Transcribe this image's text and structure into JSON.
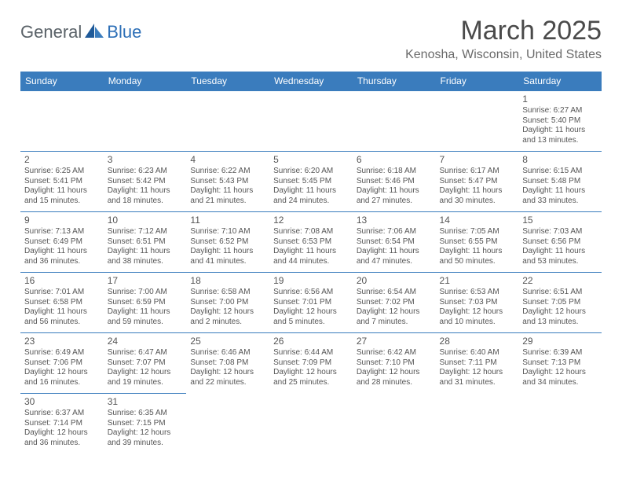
{
  "logo": {
    "text1": "General",
    "text2": "Blue"
  },
  "title": "March 2025",
  "location": "Kenosha, Wisconsin, United States",
  "colors": {
    "header_bg": "#3a7cbd",
    "header_text": "#ffffff",
    "border": "#3a7cbd",
    "body_text": "#555555",
    "title_text": "#4a4a4a",
    "logo_gray": "#5a6268",
    "logo_blue": "#2d6fb7",
    "background": "#ffffff"
  },
  "day_headers": [
    "Sunday",
    "Monday",
    "Tuesday",
    "Wednesday",
    "Thursday",
    "Friday",
    "Saturday"
  ],
  "weeks": [
    [
      null,
      null,
      null,
      null,
      null,
      null,
      {
        "n": "1",
        "sr": "Sunrise: 6:27 AM",
        "ss": "Sunset: 5:40 PM",
        "dl": "Daylight: 11 hours and 13 minutes."
      }
    ],
    [
      {
        "n": "2",
        "sr": "Sunrise: 6:25 AM",
        "ss": "Sunset: 5:41 PM",
        "dl": "Daylight: 11 hours and 15 minutes."
      },
      {
        "n": "3",
        "sr": "Sunrise: 6:23 AM",
        "ss": "Sunset: 5:42 PM",
        "dl": "Daylight: 11 hours and 18 minutes."
      },
      {
        "n": "4",
        "sr": "Sunrise: 6:22 AM",
        "ss": "Sunset: 5:43 PM",
        "dl": "Daylight: 11 hours and 21 minutes."
      },
      {
        "n": "5",
        "sr": "Sunrise: 6:20 AM",
        "ss": "Sunset: 5:45 PM",
        "dl": "Daylight: 11 hours and 24 minutes."
      },
      {
        "n": "6",
        "sr": "Sunrise: 6:18 AM",
        "ss": "Sunset: 5:46 PM",
        "dl": "Daylight: 11 hours and 27 minutes."
      },
      {
        "n": "7",
        "sr": "Sunrise: 6:17 AM",
        "ss": "Sunset: 5:47 PM",
        "dl": "Daylight: 11 hours and 30 minutes."
      },
      {
        "n": "8",
        "sr": "Sunrise: 6:15 AM",
        "ss": "Sunset: 5:48 PM",
        "dl": "Daylight: 11 hours and 33 minutes."
      }
    ],
    [
      {
        "n": "9",
        "sr": "Sunrise: 7:13 AM",
        "ss": "Sunset: 6:49 PM",
        "dl": "Daylight: 11 hours and 36 minutes."
      },
      {
        "n": "10",
        "sr": "Sunrise: 7:12 AM",
        "ss": "Sunset: 6:51 PM",
        "dl": "Daylight: 11 hours and 38 minutes."
      },
      {
        "n": "11",
        "sr": "Sunrise: 7:10 AM",
        "ss": "Sunset: 6:52 PM",
        "dl": "Daylight: 11 hours and 41 minutes."
      },
      {
        "n": "12",
        "sr": "Sunrise: 7:08 AM",
        "ss": "Sunset: 6:53 PM",
        "dl": "Daylight: 11 hours and 44 minutes."
      },
      {
        "n": "13",
        "sr": "Sunrise: 7:06 AM",
        "ss": "Sunset: 6:54 PM",
        "dl": "Daylight: 11 hours and 47 minutes."
      },
      {
        "n": "14",
        "sr": "Sunrise: 7:05 AM",
        "ss": "Sunset: 6:55 PM",
        "dl": "Daylight: 11 hours and 50 minutes."
      },
      {
        "n": "15",
        "sr": "Sunrise: 7:03 AM",
        "ss": "Sunset: 6:56 PM",
        "dl": "Daylight: 11 hours and 53 minutes."
      }
    ],
    [
      {
        "n": "16",
        "sr": "Sunrise: 7:01 AM",
        "ss": "Sunset: 6:58 PM",
        "dl": "Daylight: 11 hours and 56 minutes."
      },
      {
        "n": "17",
        "sr": "Sunrise: 7:00 AM",
        "ss": "Sunset: 6:59 PM",
        "dl": "Daylight: 11 hours and 59 minutes."
      },
      {
        "n": "18",
        "sr": "Sunrise: 6:58 AM",
        "ss": "Sunset: 7:00 PM",
        "dl": "Daylight: 12 hours and 2 minutes."
      },
      {
        "n": "19",
        "sr": "Sunrise: 6:56 AM",
        "ss": "Sunset: 7:01 PM",
        "dl": "Daylight: 12 hours and 5 minutes."
      },
      {
        "n": "20",
        "sr": "Sunrise: 6:54 AM",
        "ss": "Sunset: 7:02 PM",
        "dl": "Daylight: 12 hours and 7 minutes."
      },
      {
        "n": "21",
        "sr": "Sunrise: 6:53 AM",
        "ss": "Sunset: 7:03 PM",
        "dl": "Daylight: 12 hours and 10 minutes."
      },
      {
        "n": "22",
        "sr": "Sunrise: 6:51 AM",
        "ss": "Sunset: 7:05 PM",
        "dl": "Daylight: 12 hours and 13 minutes."
      }
    ],
    [
      {
        "n": "23",
        "sr": "Sunrise: 6:49 AM",
        "ss": "Sunset: 7:06 PM",
        "dl": "Daylight: 12 hours and 16 minutes."
      },
      {
        "n": "24",
        "sr": "Sunrise: 6:47 AM",
        "ss": "Sunset: 7:07 PM",
        "dl": "Daylight: 12 hours and 19 minutes."
      },
      {
        "n": "25",
        "sr": "Sunrise: 6:46 AM",
        "ss": "Sunset: 7:08 PM",
        "dl": "Daylight: 12 hours and 22 minutes."
      },
      {
        "n": "26",
        "sr": "Sunrise: 6:44 AM",
        "ss": "Sunset: 7:09 PM",
        "dl": "Daylight: 12 hours and 25 minutes."
      },
      {
        "n": "27",
        "sr": "Sunrise: 6:42 AM",
        "ss": "Sunset: 7:10 PM",
        "dl": "Daylight: 12 hours and 28 minutes."
      },
      {
        "n": "28",
        "sr": "Sunrise: 6:40 AM",
        "ss": "Sunset: 7:11 PM",
        "dl": "Daylight: 12 hours and 31 minutes."
      },
      {
        "n": "29",
        "sr": "Sunrise: 6:39 AM",
        "ss": "Sunset: 7:13 PM",
        "dl": "Daylight: 12 hours and 34 minutes."
      }
    ],
    [
      {
        "n": "30",
        "sr": "Sunrise: 6:37 AM",
        "ss": "Sunset: 7:14 PM",
        "dl": "Daylight: 12 hours and 36 minutes."
      },
      {
        "n": "31",
        "sr": "Sunrise: 6:35 AM",
        "ss": "Sunset: 7:15 PM",
        "dl": "Daylight: 12 hours and 39 minutes."
      },
      null,
      null,
      null,
      null,
      null
    ]
  ]
}
